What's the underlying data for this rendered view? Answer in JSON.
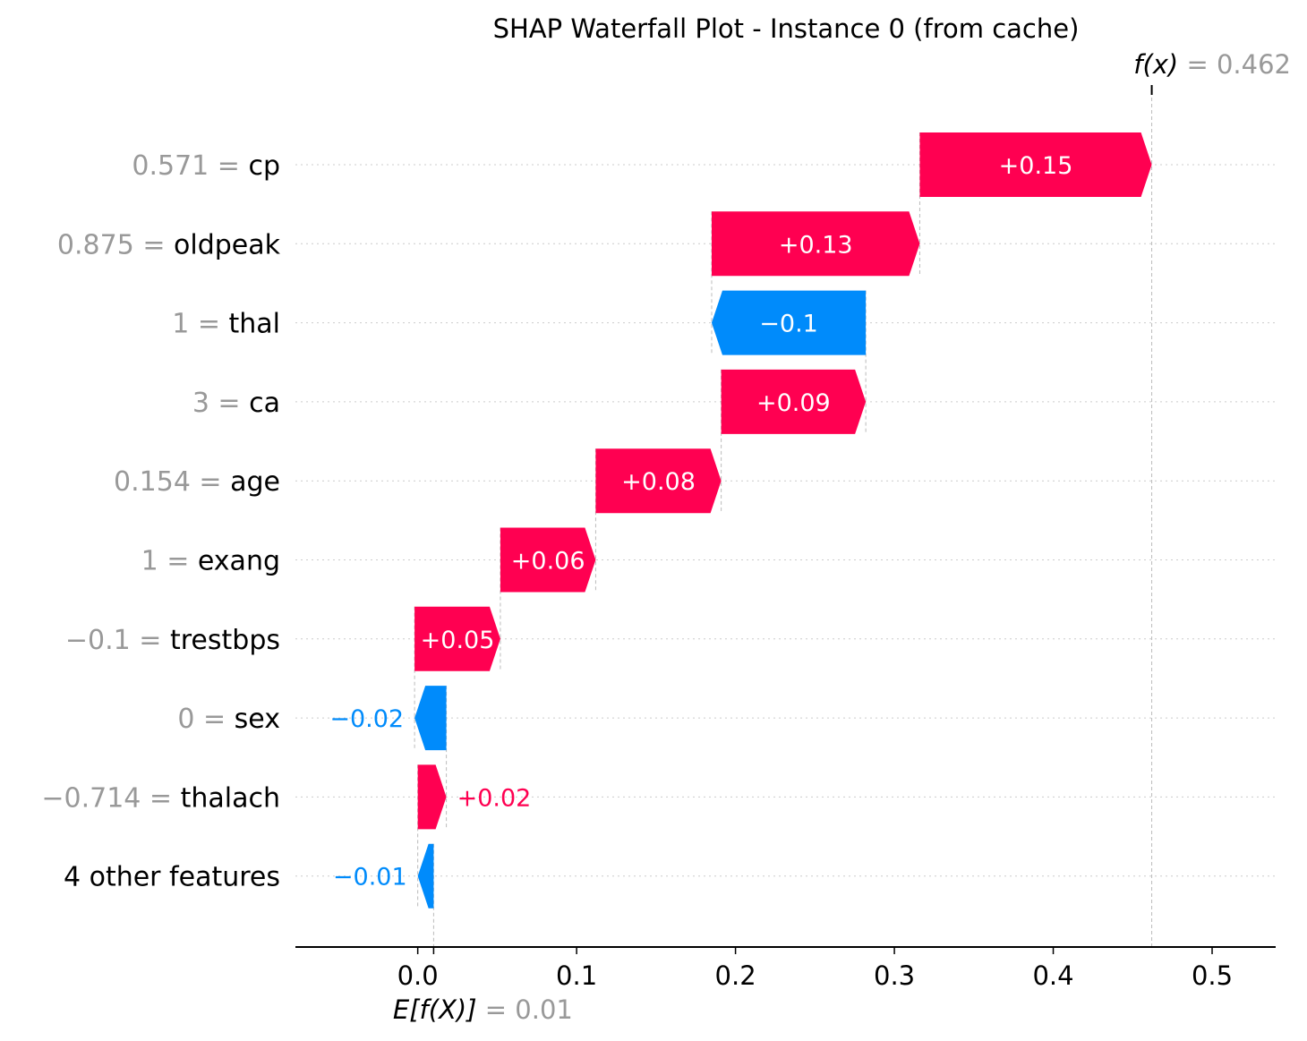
{
  "chart_data": {
    "type": "waterfall",
    "title": "SHAP Waterfall Plot - Instance 0 (from cache)",
    "base_value": 0.01,
    "output_value": 0.462,
    "base_label": {
      "func": "E[f(X)]",
      "eq": " = ",
      "value": "0.01"
    },
    "output_label": {
      "func": "f(x)",
      "eq": " = ",
      "value": "0.462"
    },
    "xlim": [
      -0.077,
      0.54
    ],
    "xticks": [
      0.0,
      0.1,
      0.2,
      0.3,
      0.4,
      0.5
    ],
    "xtick_labels": [
      "0.0",
      "0.1",
      "0.2",
      "0.3",
      "0.4",
      "0.5"
    ],
    "colors": {
      "positive": "#ff0051",
      "negative": "#008bfb",
      "feature_value": "#999999",
      "grid": "#cccccc"
    },
    "features": [
      {
        "value": "0.571",
        "name": "cp",
        "contribution": 0.146,
        "label": "+0.15"
      },
      {
        "value": "0.875",
        "name": "oldpeak",
        "contribution": 0.131,
        "label": "+0.13"
      },
      {
        "value": "1",
        "name": "thal",
        "contribution": -0.097,
        "label": "−0.1"
      },
      {
        "value": "3",
        "name": "ca",
        "contribution": 0.091,
        "label": "+0.09"
      },
      {
        "value": "0.154",
        "name": "age",
        "contribution": 0.079,
        "label": "+0.08"
      },
      {
        "value": "1",
        "name": "exang",
        "contribution": 0.06,
        "label": "+0.06"
      },
      {
        "value": "−0.1",
        "name": "trestbps",
        "contribution": 0.054,
        "label": "+0.05"
      },
      {
        "value": "0",
        "name": "sex",
        "contribution": -0.02,
        "label": "−0.02"
      },
      {
        "value": "−0.714",
        "name": "thalach",
        "contribution": 0.018,
        "label": "+0.02"
      },
      {
        "value": "",
        "name": "4 other features",
        "contribution": -0.01,
        "label": "−0.01"
      }
    ]
  }
}
